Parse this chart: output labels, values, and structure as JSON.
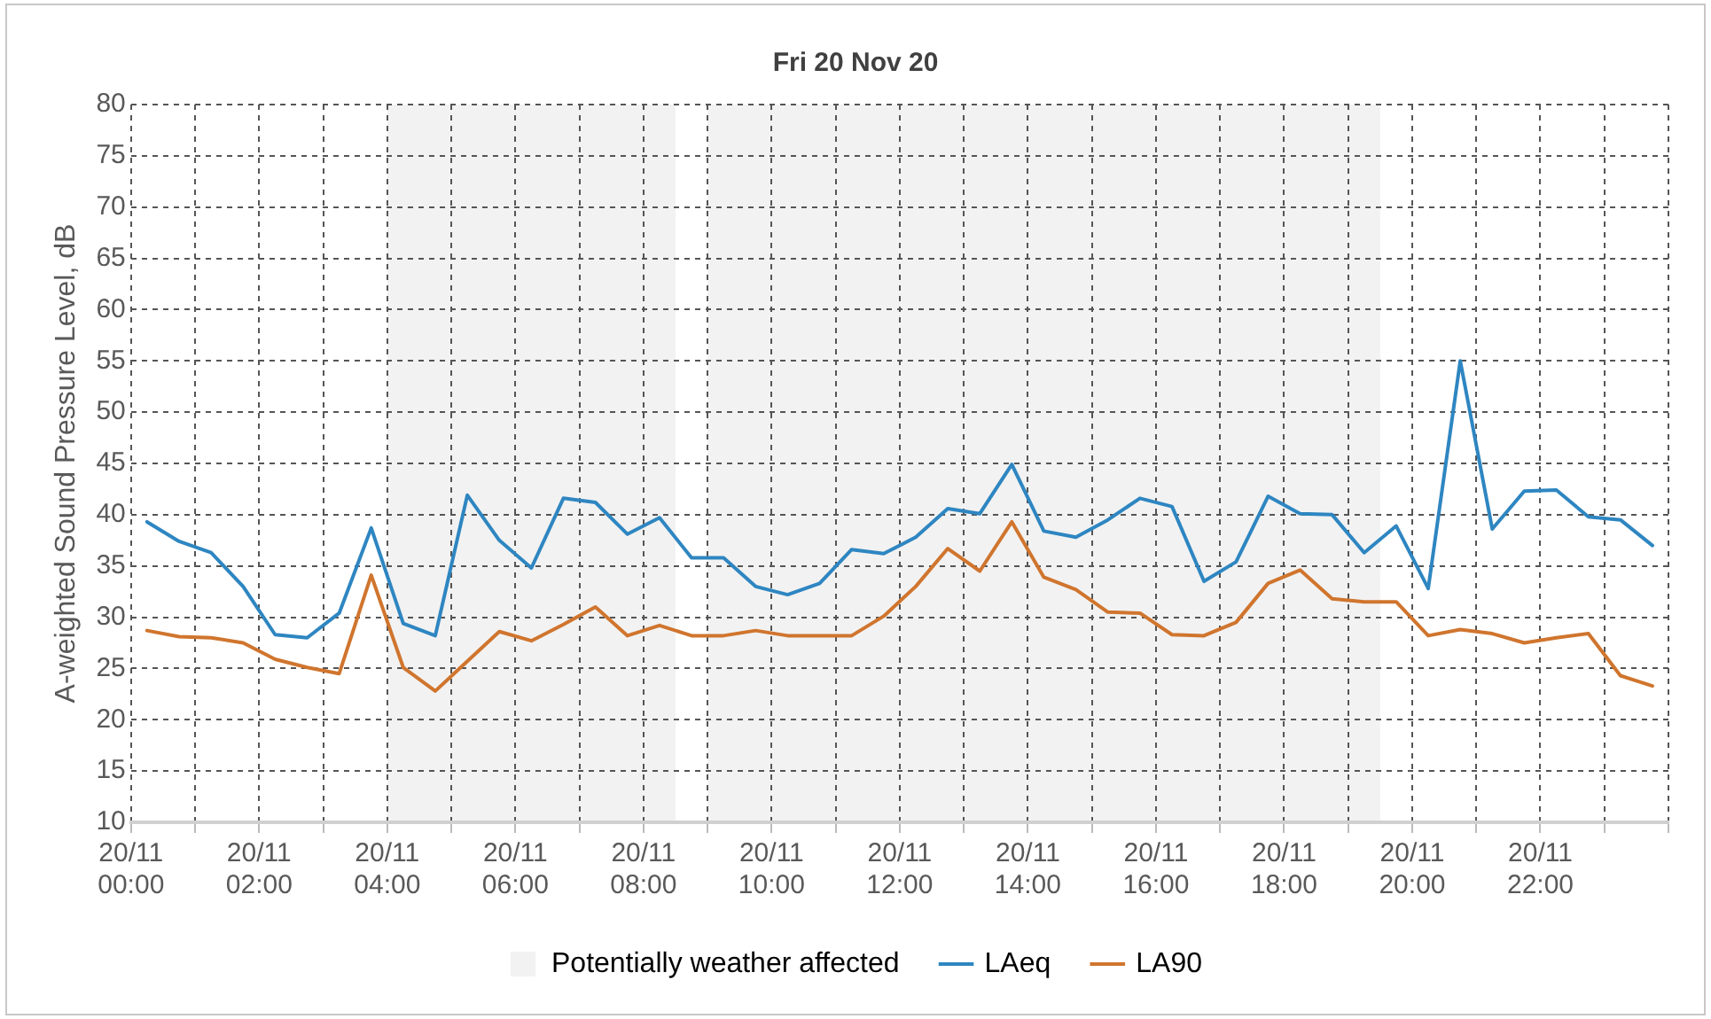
{
  "chart_data": {
    "type": "line",
    "title": "Fri 20 Nov 20",
    "ylabel": "A-weighted Sound Pressure Level, dB",
    "x": [
      "--11-20T00:15",
      "--11-20T00:45",
      "--11-20T01:15",
      "--11-20T01:45",
      "--11-20T02:15",
      "--11-20T02:45",
      "--11-20T03:15",
      "--11-20T03:45",
      "--11-20T04:15",
      "--11-20T04:45",
      "--11-20T05:15",
      "--11-20T05:45",
      "--11-20T06:15",
      "--11-20T06:45",
      "--11-20T07:15",
      "--11-20T07:45",
      "--11-20T08:15",
      "--11-20T08:45",
      "--11-20T09:15",
      "--11-20T09:45",
      "--11-20T10:15",
      "--11-20T10:45",
      "--11-20T11:15",
      "--11-20T11:45",
      "--11-20T12:15",
      "--11-20T12:45",
      "--11-20T13:15",
      "--11-20T13:45",
      "--11-20T14:15",
      "--11-20T14:45",
      "--11-20T15:15",
      "--11-20T15:45",
      "--11-20T16:15",
      "--11-20T16:45",
      "--11-20T17:15",
      "--11-20T17:45",
      "--11-20T18:15",
      "--11-20T18:45",
      "--11-20T19:15",
      "--11-20T19:45",
      "--11-20T20:15",
      "--11-20T20:45",
      "--11-20T21:15",
      "--11-20T21:45",
      "--11-20T22:15",
      "--11-20T22:45",
      "--11-20T23:15",
      "--11-20T23:45"
    ],
    "series": [
      {
        "name": "LAeq",
        "color": "#2e86c1",
        "values": [
          39.3,
          37.4,
          36.3,
          33.0,
          28.3,
          28.0,
          30.4,
          38.7,
          29.4,
          28.2,
          41.9,
          37.5,
          34.8,
          41.6,
          41.2,
          38.1,
          39.7,
          35.8,
          35.8,
          33.0,
          32.2,
          33.3,
          36.6,
          36.2,
          37.8,
          40.6,
          40.1,
          44.9,
          38.4,
          37.8,
          39.5,
          41.6,
          40.8,
          33.5,
          35.4,
          41.8,
          40.1,
          40.0,
          36.3,
          38.9,
          32.8,
          55.0,
          38.6,
          42.3,
          42.4,
          39.8,
          39.5,
          37.0
        ]
      },
      {
        "name": "LA90",
        "color": "#d0752e",
        "values": [
          28.7,
          28.1,
          28.0,
          27.5,
          25.9,
          25.1,
          24.5,
          34.1,
          25.1,
          22.8,
          25.7,
          28.6,
          27.7,
          29.3,
          31.0,
          28.2,
          29.2,
          28.2,
          28.2,
          28.7,
          28.2,
          28.2,
          28.2,
          30.1,
          33.0,
          36.7,
          34.5,
          39.3,
          33.9,
          32.7,
          30.5,
          30.4,
          28.3,
          28.2,
          29.5,
          33.3,
          34.6,
          31.8,
          31.5,
          31.5,
          28.2,
          28.8,
          28.4,
          27.5,
          28.0,
          28.4,
          24.3,
          23.3
        ]
      }
    ],
    "xlim": [
      "--11-20T00:00",
      "--11-21T00:00"
    ],
    "xticks": [
      {
        "value": "--11-20T00:00",
        "label": "20/11 00:00"
      },
      {
        "value": "--11-20T01:00",
        "label": null
      },
      {
        "value": "--11-20T02:00",
        "label": "20/11 02:00"
      },
      {
        "value": "--11-20T03:00",
        "label": null
      },
      {
        "value": "--11-20T04:00",
        "label": "20/11 04:00"
      },
      {
        "value": "--11-20T05:00",
        "label": null
      },
      {
        "value": "--11-20T06:00",
        "label": "20/11 06:00"
      },
      {
        "value": "--11-20T07:00",
        "label": null
      },
      {
        "value": "--11-20T08:00",
        "label": "20/11 08:00"
      },
      {
        "value": "--11-20T09:00",
        "label": null
      },
      {
        "value": "--11-20T10:00",
        "label": "20/11 10:00"
      },
      {
        "value": "--11-20T11:00",
        "label": null
      },
      {
        "value": "--11-20T12:00",
        "label": "20/11 12:00"
      },
      {
        "value": "--11-20T13:00",
        "label": null
      },
      {
        "value": "--11-20T14:00",
        "label": "20/11 14:00"
      },
      {
        "value": "--11-20T15:00",
        "label": null
      },
      {
        "value": "--11-20T16:00",
        "label": "20/11 16:00"
      },
      {
        "value": "--11-20T17:00",
        "label": null
      },
      {
        "value": "--11-20T18:00",
        "label": "20/11 18:00"
      },
      {
        "value": "--11-20T19:00",
        "label": null
      },
      {
        "value": "--11-20T20:00",
        "label": "20/11 20:00"
      },
      {
        "value": "--11-20T21:00",
        "label": null
      },
      {
        "value": "--11-20T22:00",
        "label": "20/11 22:00"
      },
      {
        "value": "--11-20T23:00",
        "label": null
      },
      {
        "value": "--11-21T00:00",
        "label": null
      }
    ],
    "ylim": [
      10,
      80
    ],
    "yticks": [
      10,
      15,
      20,
      25,
      30,
      35,
      40,
      45,
      50,
      55,
      60,
      65,
      70,
      75,
      80
    ],
    "bands": [
      {
        "axis": "x",
        "from": "--11-20T04:00",
        "to": "--11-20T08:30",
        "label": "Potentially weather affected",
        "color": "#f2f2f2"
      },
      {
        "axis": "x",
        "from": "--11-20T09:00",
        "to": "--11-20T19:30",
        "color": "#f2f2f2"
      }
    ],
    "grid": true,
    "legend": "bottom",
    "marker": "none",
    "line_style": "solid"
  }
}
